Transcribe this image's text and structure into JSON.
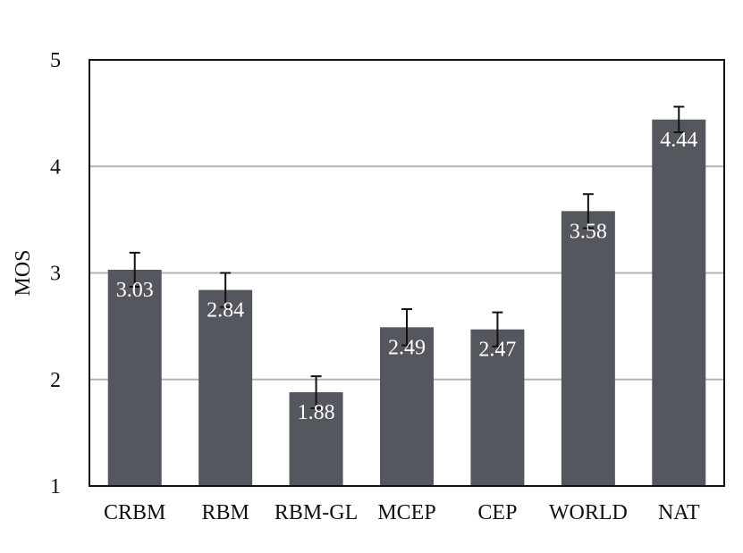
{
  "chart_data": {
    "type": "bar",
    "title": "",
    "xlabel": "",
    "ylabel": "MOS",
    "ylim": [
      1,
      5
    ],
    "yticks": [
      1,
      2,
      3,
      4,
      5
    ],
    "grid": true,
    "categories": [
      "CRBM",
      "RBM",
      "RBM-GL",
      "MCEP",
      "CEP",
      "WORLD",
      "NAT"
    ],
    "values": [
      3.03,
      2.84,
      1.88,
      2.49,
      2.47,
      3.58,
      4.44
    ],
    "value_labels": [
      "3.03",
      "2.84",
      "1.88",
      "2.49",
      "2.47",
      "3.58",
      "4.44"
    ],
    "error": [
      0.16,
      0.16,
      0.15,
      0.17,
      0.16,
      0.16,
      0.12
    ]
  },
  "colors": {
    "bar": "#54585e",
    "grid": "#b4b4b4",
    "axis": "#111111",
    "error_bar": "#111111",
    "label_text": "#ffffff"
  }
}
